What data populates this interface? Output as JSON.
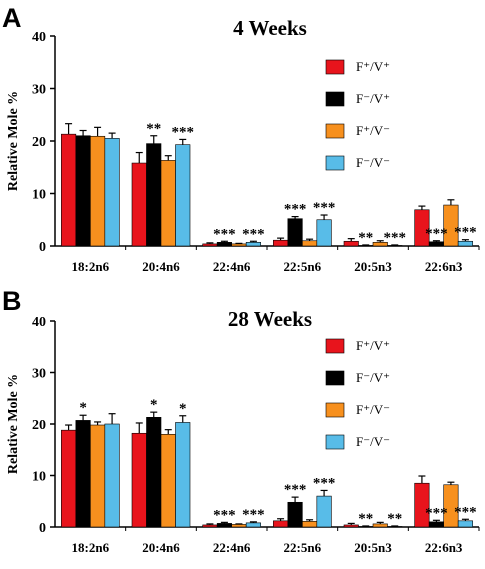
{
  "chart_data": [
    {
      "type": "bar",
      "panel": "A",
      "title": "4 Weeks",
      "ylabel": "Relative Mole %",
      "xlabel": "",
      "ylim": [
        0,
        40
      ],
      "yticks": [
        0,
        10,
        20,
        30,
        40
      ],
      "grid": false,
      "legend": "right",
      "categories": [
        "18:2n6",
        "20:4n6",
        "22:4n6",
        "22:5n6",
        "20:5n3",
        "22:6n3"
      ],
      "series": [
        {
          "name": "F⁺/V⁺",
          "color": "#e8141c",
          "values": [
            21.3,
            15.8,
            0.4,
            1.1,
            0.9,
            6.9
          ],
          "errors": [
            2.0,
            2.0,
            0.2,
            0.4,
            0.5,
            0.7
          ]
        },
        {
          "name": "F⁻/V⁺",
          "color": "#000000",
          "values": [
            21.0,
            19.5,
            0.7,
            5.2,
            0.1,
            0.8
          ],
          "errors": [
            1.0,
            1.5,
            0.2,
            0.4,
            0.1,
            0.2
          ]
        },
        {
          "name": "F⁺/V⁻",
          "color": "#f7901e",
          "values": [
            20.9,
            16.3,
            0.4,
            1.0,
            0.7,
            7.8
          ],
          "errors": [
            1.7,
            0.9,
            0.1,
            0.3,
            0.3,
            1.0
          ]
        },
        {
          "name": "F⁻/V⁻",
          "color": "#58bce8",
          "values": [
            20.5,
            19.3,
            0.7,
            5.0,
            0.1,
            0.9
          ],
          "errors": [
            1.0,
            1.0,
            0.2,
            0.9,
            0.1,
            0.3
          ]
        }
      ],
      "significance": [
        {
          "category": "20:4n6",
          "marks": [
            "**",
            "***"
          ]
        },
        {
          "category": "22:4n6",
          "marks": [
            "***",
            "***"
          ]
        },
        {
          "category": "22:5n6",
          "marks": [
            "***",
            "***"
          ]
        },
        {
          "category": "20:5n3",
          "marks": [
            "**",
            "***"
          ]
        },
        {
          "category": "22:6n3",
          "marks": [
            "***",
            "***"
          ]
        }
      ]
    },
    {
      "type": "bar",
      "panel": "B",
      "title": "28 Weeks",
      "ylabel": "Relative Mole %",
      "xlabel": "",
      "ylim": [
        0,
        40
      ],
      "yticks": [
        0,
        10,
        20,
        30,
        40
      ],
      "grid": false,
      "legend": "right",
      "categories": [
        "18:2n6",
        "20:4n6",
        "22:4n6",
        "22:5n6",
        "20:5n3",
        "22:6n3"
      ],
      "series": [
        {
          "name": "F⁺/V⁺",
          "color": "#e8141c",
          "values": [
            18.8,
            18.2,
            0.4,
            1.2,
            0.4,
            8.5
          ],
          "errors": [
            1.0,
            2.0,
            0.2,
            0.4,
            0.3,
            1.4
          ]
        },
        {
          "name": "F⁻/V⁺",
          "color": "#000000",
          "values": [
            20.7,
            21.3,
            0.7,
            4.8,
            0.1,
            1.0
          ],
          "errors": [
            1.0,
            1.0,
            0.2,
            1.0,
            0.1,
            0.3
          ]
        },
        {
          "name": "F⁺/V⁻",
          "color": "#f7901e",
          "values": [
            19.8,
            18.0,
            0.5,
            1.1,
            0.6,
            8.2
          ],
          "errors": [
            0.6,
            0.9,
            0.1,
            0.3,
            0.3,
            0.5
          ]
        },
        {
          "name": "F⁻/V⁻",
          "color": "#58bce8",
          "values": [
            20.0,
            20.3,
            0.8,
            6.0,
            0.1,
            1.2
          ],
          "errors": [
            2.0,
            1.3,
            0.2,
            1.1,
            0.1,
            0.3
          ]
        }
      ],
      "significance": [
        {
          "category": "18:2n6",
          "marks": [
            "*",
            ""
          ]
        },
        {
          "category": "20:4n6",
          "marks": [
            "*",
            "*"
          ]
        },
        {
          "category": "22:4n6",
          "marks": [
            "***",
            "***"
          ]
        },
        {
          "category": "22:5n6",
          "marks": [
            "***",
            "***"
          ]
        },
        {
          "category": "20:5n3",
          "marks": [
            "**",
            "**"
          ]
        },
        {
          "category": "22:6n3",
          "marks": [
            "***",
            "***"
          ]
        }
      ]
    }
  ]
}
